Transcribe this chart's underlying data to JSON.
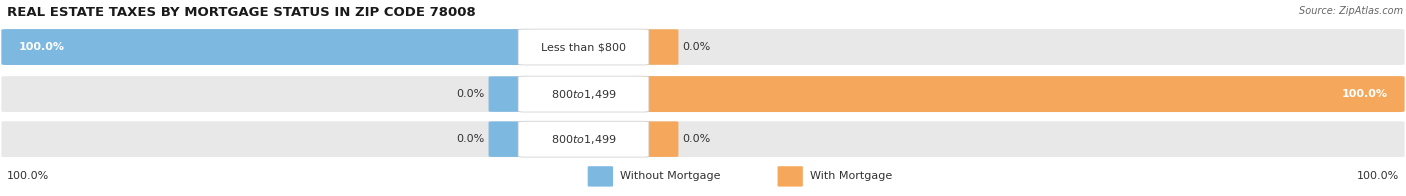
{
  "title": "REAL ESTATE TAXES BY MORTGAGE STATUS IN ZIP CODE 78008",
  "source": "Source: ZipAtlas.com",
  "rows": [
    {
      "label": "Less than $800",
      "without_mortgage": 100.0,
      "with_mortgage": 0.0
    },
    {
      "label": "$800 to $1,499",
      "without_mortgage": 0.0,
      "with_mortgage": 100.0
    },
    {
      "label": "$800 to $1,499",
      "without_mortgage": 0.0,
      "with_mortgage": 0.0
    }
  ],
  "color_without": "#7db8e0",
  "color_with": "#f5a85c",
  "bar_bg": "#e8e8e8",
  "legend_without": "Without Mortgage",
  "legend_with": "With Mortgage",
  "left_footer": "100.0%",
  "right_footer": "100.0%",
  "title_fontsize": 9.5,
  "value_fontsize": 8,
  "label_fontsize": 8
}
